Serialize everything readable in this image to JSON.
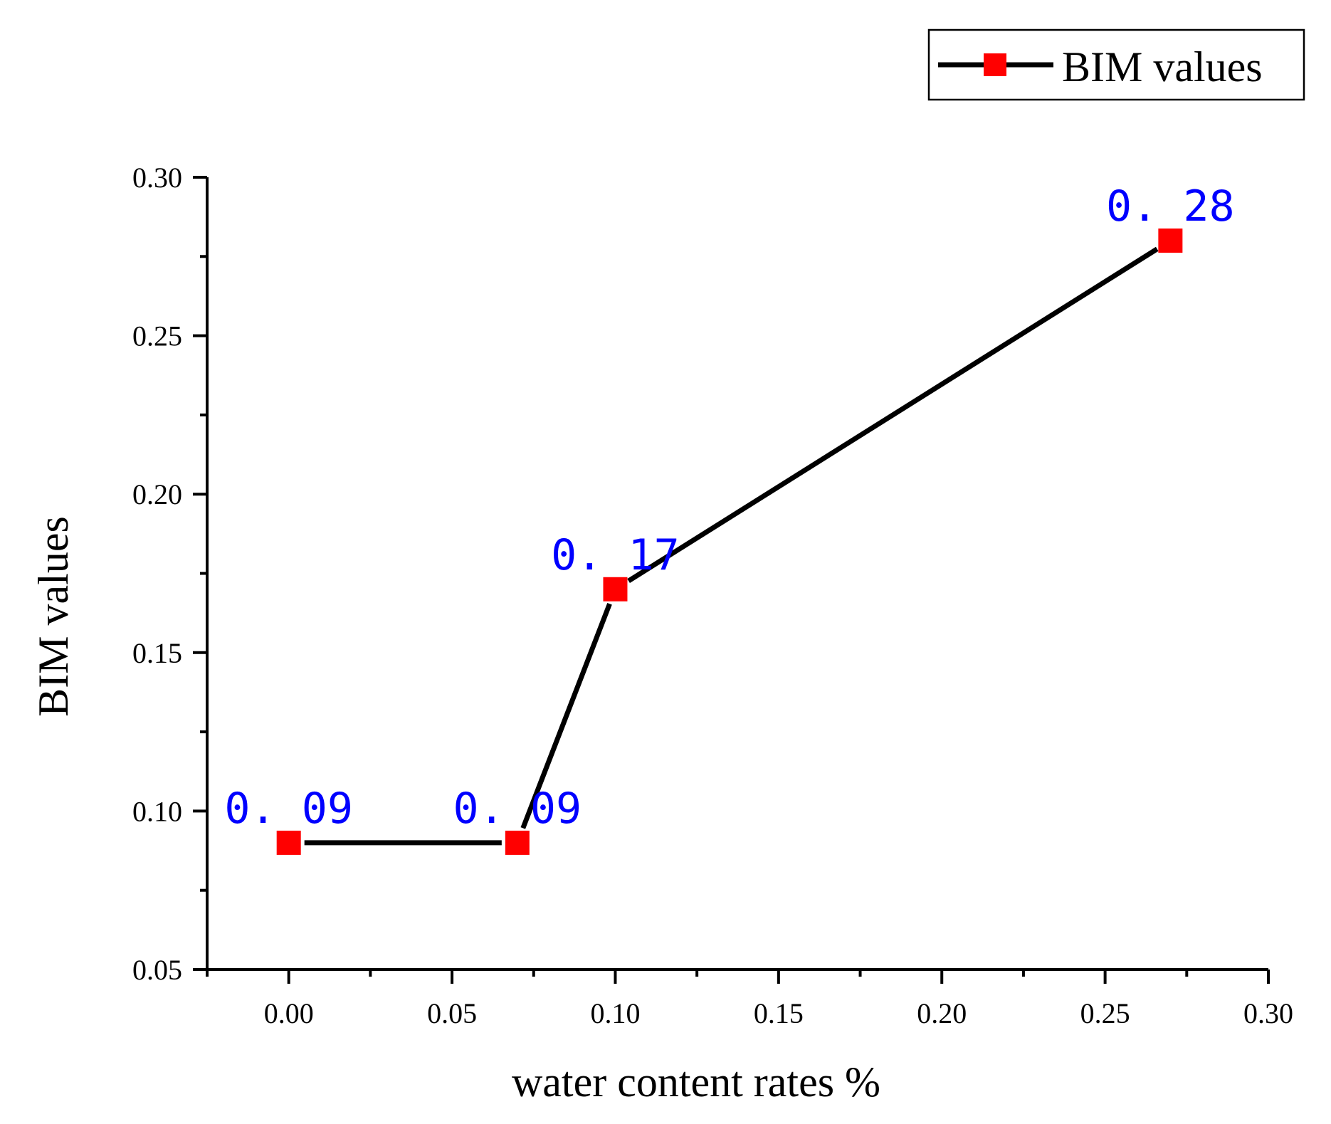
{
  "chart_data": {
    "type": "line",
    "title": "",
    "xlabel": "water content rates %",
    "ylabel": "BIM values",
    "xlim": [
      -0.025,
      0.3
    ],
    "ylim": [
      0.05,
      0.3
    ],
    "xticks": [
      0.0,
      0.05,
      0.1,
      0.15,
      0.2,
      0.25,
      0.3
    ],
    "xtick_labels": [
      "0.00",
      "0.05",
      "0.10",
      "0.15",
      "0.20",
      "0.25",
      "0.30"
    ],
    "xminor_ticks": [
      -0.025,
      0.025,
      0.075,
      0.125,
      0.175,
      0.225,
      0.275
    ],
    "yticks": [
      0.05,
      0.1,
      0.15,
      0.2,
      0.25,
      0.3
    ],
    "ytick_labels": [
      "0.05",
      "0.10",
      "0.15",
      "0.20",
      "0.25",
      "0.30"
    ],
    "yminor_ticks": [
      0.075,
      0.125,
      0.175,
      0.225,
      0.275
    ],
    "grid": false,
    "legend_position": "top-right",
    "series": [
      {
        "name": "BIM values",
        "x": [
          0.0,
          0.07,
          0.1,
          0.27
        ],
        "y": [
          0.09,
          0.09,
          0.17,
          0.28
        ],
        "data_labels": [
          "0. 09",
          "0. 09",
          "0. 17",
          "0. 28"
        ],
        "line_color": "#000000",
        "marker": "square",
        "marker_color": "#ff0000",
        "label_color": "#0000ff"
      }
    ]
  }
}
